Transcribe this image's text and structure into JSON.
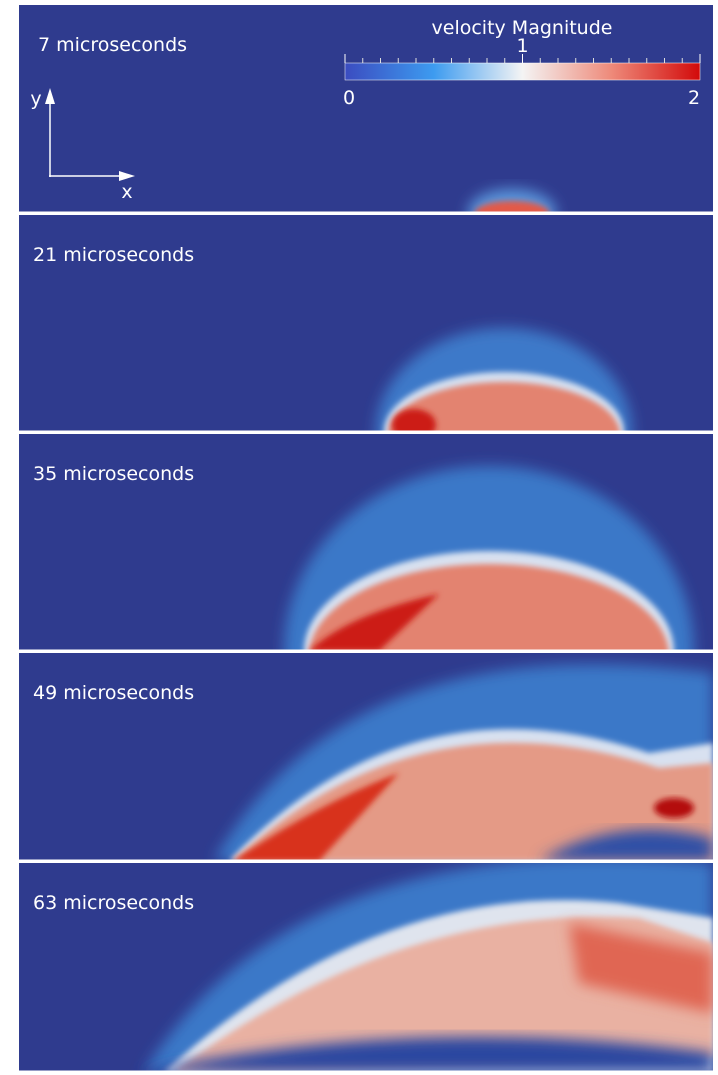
{
  "panels": [
    {
      "label": "7 microseconds"
    },
    {
      "label": "21 microseconds"
    },
    {
      "label": "35 microseconds"
    },
    {
      "label": "49 microseconds"
    },
    {
      "label": "63 microseconds"
    }
  ],
  "colorbar": {
    "title": "velocity Magnitude",
    "range": [
      0,
      2
    ],
    "ticks": [
      0,
      1,
      2
    ]
  },
  "axes": {
    "x": "x",
    "y": "y"
  }
}
